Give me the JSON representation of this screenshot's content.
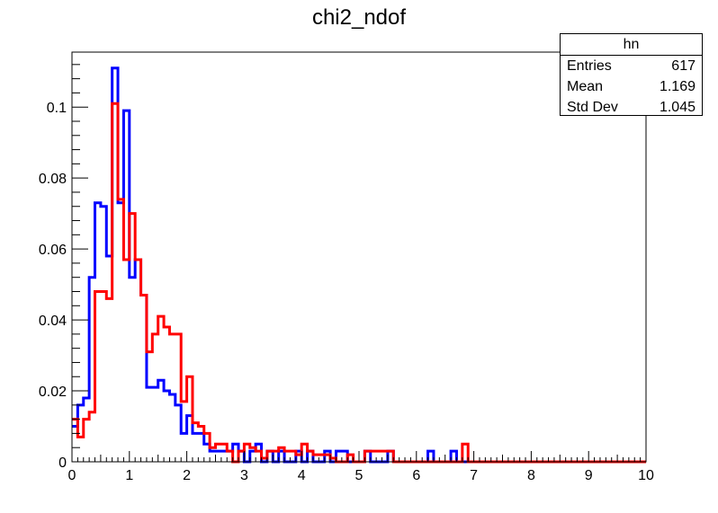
{
  "chart_data": {
    "type": "histogram",
    "title": "chi2_ndof",
    "xlim": [
      0,
      10
    ],
    "ylim": [
      0,
      0.1155
    ],
    "bins": 100,
    "x_ticks": [
      "0",
      "1",
      "2",
      "3",
      "4",
      "5",
      "6",
      "7",
      "8",
      "9",
      "10"
    ],
    "y_ticks": [
      {
        "value": 0,
        "label": "0"
      },
      {
        "value": 0.02,
        "label": "0.02"
      },
      {
        "value": 0.04,
        "label": "0.04"
      },
      {
        "value": 0.06,
        "label": "0.06"
      },
      {
        "value": 0.08,
        "label": "0.08"
      },
      {
        "value": 0.1,
        "label": "0.1"
      }
    ],
    "series": [
      {
        "color": "#0000ff",
        "bin_width": 0.1,
        "values": [
          0.01,
          0.016,
          0.018,
          0.052,
          0.073,
          0.072,
          0.058,
          0.111,
          0.073,
          0.099,
          0.052,
          0.057,
          0.047,
          0.021,
          0.021,
          0.023,
          0.02,
          0.019,
          0.016,
          0.008,
          0.013,
          0.008,
          0.008,
          0.005,
          0.003,
          0.003,
          0.003,
          0.003,
          0.005,
          0.003,
          0.0,
          0.003,
          0.005,
          0.0,
          0.003,
          0.0,
          0.003,
          0.0,
          0.0,
          0.003,
          0.0,
          0.003,
          0.0,
          0.0,
          0.003,
          0.0,
          0.003,
          0.003,
          0.0,
          0.0,
          0.0,
          0.003,
          0.0,
          0.0,
          0.0,
          0.003,
          0.0,
          0.0,
          0.0,
          0.0,
          0.0,
          0.0,
          0.003,
          0.0,
          0.0,
          0.0,
          0.003,
          0.0,
          0.0,
          0.0,
          0.0,
          0.0,
          0.0,
          0.0,
          0.0,
          0.0,
          0.0,
          0.0,
          0.0,
          0.0,
          0.0,
          0.0,
          0.0,
          0.0,
          0.0,
          0.0,
          0.0,
          0.0,
          0.0,
          0.0,
          0.0,
          0.0,
          0.0,
          0.0,
          0.0,
          0.0,
          0.0,
          0.0,
          0.0,
          0.0
        ]
      },
      {
        "color": "#ff0000",
        "bin_width": 0.1,
        "values": [
          0.012,
          0.007,
          0.012,
          0.014,
          0.048,
          0.048,
          0.046,
          0.101,
          0.074,
          0.057,
          0.07,
          0.057,
          0.047,
          0.031,
          0.036,
          0.041,
          0.038,
          0.036,
          0.036,
          0.017,
          0.024,
          0.011,
          0.01,
          0.008,
          0.004,
          0.005,
          0.005,
          0.003,
          0.0,
          0.003,
          0.005,
          0.004,
          0.003,
          0.001,
          0.003,
          0.003,
          0.004,
          0.003,
          0.003,
          0.002,
          0.005,
          0.003,
          0.002,
          0.002,
          0.002,
          0.001,
          0.0,
          0.0,
          0.002,
          0.0,
          0.0,
          0.003,
          0.003,
          0.003,
          0.003,
          0.003,
          0.0,
          0.0,
          0.0,
          0.0,
          0.0,
          0.0,
          0.0,
          0.0,
          0.0,
          0.0,
          0.0,
          0.0,
          0.005,
          0.0,
          0.0,
          0.0,
          0.0,
          0.0,
          0.0,
          0.0,
          0.0,
          0.0,
          0.0,
          0.0,
          0.0,
          0.0,
          0.0,
          0.0,
          0.0,
          0.0,
          0.0,
          0.0,
          0.0,
          0.0,
          0.0,
          0.0,
          0.0,
          0.0,
          0.0,
          0.0,
          0.0,
          0.0,
          0.0,
          0.0
        ]
      }
    ]
  },
  "stats_box": {
    "title": "hn",
    "rows": [
      {
        "label": "Entries",
        "value": "617"
      },
      {
        "label": "Mean",
        "value": "1.169"
      },
      {
        "label": "Std Dev",
        "value": "1.045"
      }
    ]
  }
}
